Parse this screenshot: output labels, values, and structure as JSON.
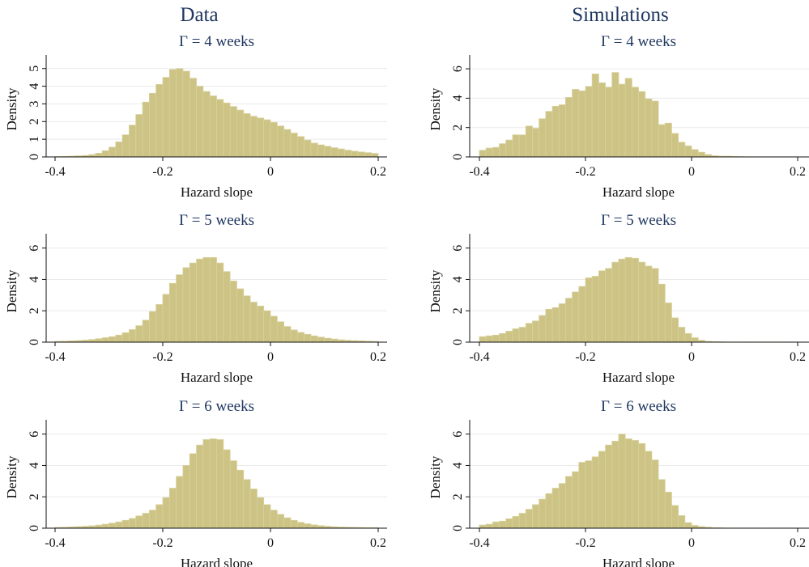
{
  "column_titles": [
    "Data",
    "Simulations"
  ],
  "chart_data": [
    {
      "type": "bar",
      "panel": "data-4",
      "title": "Γ = 4 weeks",
      "xlabel": "Hazard slope",
      "ylabel": "Density",
      "xlim": [
        -0.4,
        0.2
      ],
      "ylim": [
        0,
        5.4
      ],
      "xticks": [
        -0.4,
        -0.2,
        0,
        0.2
      ],
      "xtick_labels": [
        "-0.4",
        "-0.2",
        "0",
        "0.2"
      ],
      "yticks": [
        0,
        1,
        2,
        3,
        4,
        5
      ],
      "ytick_labels": [
        "0",
        "1",
        "2",
        "3",
        "4",
        "5"
      ],
      "bin_start": -0.4,
      "bin_width": 0.0125,
      "grid": true,
      "values": [
        0.02,
        0.03,
        0.04,
        0.06,
        0.08,
        0.13,
        0.21,
        0.35,
        0.55,
        0.85,
        1.25,
        1.8,
        2.4,
        3.1,
        3.6,
        4.1,
        4.5,
        4.95,
        5.0,
        4.85,
        4.45,
        4.0,
        3.7,
        3.45,
        3.25,
        3.05,
        2.85,
        2.65,
        2.45,
        2.3,
        2.2,
        2.1,
        1.95,
        1.75,
        1.55,
        1.35,
        1.15,
        0.95,
        0.78,
        0.68,
        0.6,
        0.52,
        0.45,
        0.38,
        0.32,
        0.28,
        0.24,
        0.2
      ]
    },
    {
      "type": "bar",
      "panel": "sim-4",
      "title": "Γ = 4 weeks",
      "xlabel": "Hazard slope",
      "ylabel": "Density",
      "xlim": [
        -0.4,
        0.2
      ],
      "ylim": [
        0,
        6.5
      ],
      "xticks": [
        -0.4,
        -0.2,
        0,
        0.2
      ],
      "xtick_labels": [
        "-0.4",
        "-0.2",
        "0",
        "0.2"
      ],
      "yticks": [
        0,
        2,
        4,
        6
      ],
      "ytick_labels": [
        "0",
        "2",
        "4",
        "6"
      ],
      "bin_start": -0.4,
      "bin_width": 0.0125,
      "grid": true,
      "values": [
        0.45,
        0.6,
        0.65,
        0.9,
        1.15,
        1.5,
        1.5,
        2.1,
        1.95,
        2.6,
        3.1,
        3.45,
        3.55,
        4.05,
        4.6,
        4.5,
        4.8,
        5.65,
        5.05,
        4.75,
        5.75,
        4.95,
        5.35,
        4.75,
        4.45,
        3.95,
        3.8,
        2.2,
        2.3,
        1.6,
        1.0,
        0.75,
        0.5,
        0.32,
        0.16,
        0.08,
        0.05,
        0.05,
        0.03,
        0.02,
        0.01,
        0.01,
        0.01,
        0.01,
        0.01,
        0.01,
        0.01,
        0.01
      ]
    },
    {
      "type": "bar",
      "panel": "data-5",
      "title": "Γ = 5 weeks",
      "xlabel": "Hazard slope",
      "ylabel": "Density",
      "xlim": [
        -0.4,
        0.2
      ],
      "ylim": [
        0,
        6.5
      ],
      "xticks": [
        -0.4,
        -0.2,
        0,
        0.2
      ],
      "xtick_labels": [
        "-0.4",
        "-0.2",
        "0",
        "0.2"
      ],
      "yticks": [
        0,
        2,
        4,
        6
      ],
      "ytick_labels": [
        "0",
        "2",
        "4",
        "6"
      ],
      "bin_start": -0.4,
      "bin_width": 0.0125,
      "grid": true,
      "values": [
        0.05,
        0.06,
        0.08,
        0.1,
        0.13,
        0.17,
        0.22,
        0.28,
        0.35,
        0.45,
        0.6,
        0.8,
        1.05,
        1.4,
        1.95,
        2.4,
        3.05,
        3.75,
        4.3,
        4.75,
        5.05,
        5.3,
        5.4,
        5.4,
        5.05,
        4.5,
        3.9,
        3.4,
        2.95,
        2.55,
        2.3,
        2.0,
        1.65,
        1.3,
        1.0,
        0.78,
        0.62,
        0.5,
        0.4,
        0.32,
        0.25,
        0.2,
        0.15,
        0.12,
        0.1,
        0.08,
        0.06,
        0.05
      ]
    },
    {
      "type": "bar",
      "panel": "sim-5",
      "title": "Γ = 5 weeks",
      "xlabel": "Hazard slope",
      "ylabel": "Density",
      "xlim": [
        -0.4,
        0.2
      ],
      "ylim": [
        0,
        6.5
      ],
      "xticks": [
        -0.4,
        -0.2,
        0,
        0.2
      ],
      "xtick_labels": [
        "-0.4",
        "-0.2",
        "0",
        "0.2"
      ],
      "yticks": [
        0,
        2,
        4,
        6
      ],
      "ytick_labels": [
        "0",
        "2",
        "4",
        "6"
      ],
      "bin_start": -0.4,
      "bin_width": 0.0125,
      "grid": true,
      "values": [
        0.35,
        0.4,
        0.45,
        0.55,
        0.7,
        0.85,
        0.95,
        1.2,
        1.35,
        1.7,
        2.1,
        2.2,
        2.45,
        2.8,
        3.2,
        3.55,
        4.1,
        4.2,
        4.55,
        4.7,
        5.1,
        5.3,
        5.4,
        5.35,
        5.1,
        4.85,
        4.7,
        3.7,
        2.5,
        1.55,
        0.95,
        0.55,
        0.28,
        0.12,
        0.05,
        0.03,
        0.02,
        0.01,
        0.01,
        0.01,
        0.01,
        0.01,
        0.01,
        0.01,
        0.01,
        0.01,
        0.01,
        0.01
      ]
    },
    {
      "type": "bar",
      "panel": "data-6",
      "title": "Γ = 6 weeks",
      "xlabel": "Hazard slope",
      "ylabel": "Density",
      "xlim": [
        -0.4,
        0.2
      ],
      "ylim": [
        0,
        6.5
      ],
      "xticks": [
        -0.4,
        -0.2,
        0,
        0.2
      ],
      "xtick_labels": [
        "-0.4",
        "-0.2",
        "0",
        "0.2"
      ],
      "yticks": [
        0,
        2,
        4,
        6
      ],
      "ytick_labels": [
        "0",
        "2",
        "4",
        "6"
      ],
      "bin_start": -0.4,
      "bin_width": 0.0125,
      "grid": true,
      "values": [
        0.05,
        0.06,
        0.08,
        0.1,
        0.12,
        0.15,
        0.2,
        0.25,
        0.32,
        0.4,
        0.5,
        0.62,
        0.78,
        0.95,
        1.15,
        1.5,
        1.95,
        2.55,
        3.3,
        4.0,
        4.75,
        5.3,
        5.65,
        5.7,
        5.65,
        5.0,
        4.3,
        3.7,
        3.1,
        2.5,
        1.95,
        1.5,
        1.15,
        0.88,
        0.66,
        0.5,
        0.37,
        0.28,
        0.21,
        0.16,
        0.12,
        0.09,
        0.07,
        0.06,
        0.05,
        0.04,
        0.03,
        0.03
      ]
    },
    {
      "type": "bar",
      "panel": "sim-6",
      "title": "Γ = 6 weeks",
      "xlabel": "Hazard slope",
      "ylabel": "Density",
      "xlim": [
        -0.4,
        0.2
      ],
      "ylim": [
        0,
        6.5
      ],
      "xticks": [
        -0.4,
        -0.2,
        0,
        0.2
      ],
      "xtick_labels": [
        "-0.4",
        "-0.2",
        "0",
        "0.2"
      ],
      "yticks": [
        0,
        2,
        4,
        6
      ],
      "ytick_labels": [
        "0",
        "2",
        "4",
        "6"
      ],
      "bin_start": -0.4,
      "bin_width": 0.0125,
      "grid": true,
      "values": [
        0.2,
        0.25,
        0.4,
        0.45,
        0.6,
        0.75,
        0.95,
        1.2,
        1.5,
        1.85,
        2.2,
        2.55,
        2.85,
        3.3,
        3.6,
        4.2,
        4.3,
        4.55,
        4.9,
        5.3,
        5.55,
        6.0,
        5.7,
        5.6,
        5.4,
        4.9,
        4.35,
        3.1,
        2.3,
        1.45,
        0.8,
        0.35,
        0.18,
        0.1,
        0.06,
        0.03,
        0.02,
        0.01,
        0.01,
        0.01,
        0.01,
        0.01,
        0.01,
        0.01,
        0.01,
        0.01,
        0.01,
        0.01
      ]
    }
  ]
}
